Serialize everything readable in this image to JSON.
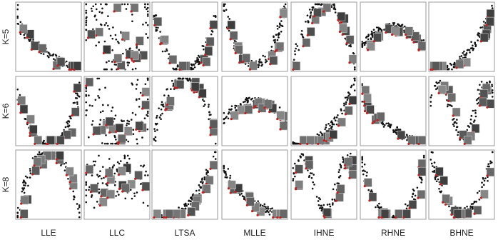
{
  "figure": {
    "row_labels": [
      "K=5",
      "K=6",
      "K=8"
    ],
    "column_labels": [
      "LLE",
      "LLC",
      "LTSA",
      "MLLE",
      "IHNE",
      "RHNE",
      "BHNE"
    ]
  }
}
